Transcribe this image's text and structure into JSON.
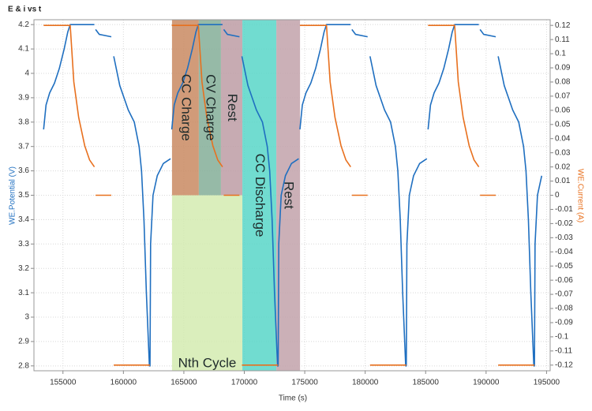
{
  "chart_data": {
    "type": "line",
    "title": "E & i vs t",
    "x_label": "Time (s)",
    "y_label": "WE.Potential (V)",
    "y2_label": "WE.Current (A)",
    "grid": true,
    "xlim": [
      152600,
      195300
    ],
    "xticks": [
      155000,
      160000,
      165000,
      170000,
      175000,
      180000,
      185000,
      190000,
      195000
    ],
    "ylim": [
      2.78,
      4.22
    ],
    "yticks": [
      2.8,
      2.9,
      3,
      3.1,
      3.2,
      3.3,
      3.4,
      3.5,
      3.6,
      3.7,
      3.8,
      3.9,
      4,
      4.1,
      4.2
    ],
    "y2lim": [
      -0.124,
      0.124
    ],
    "y2ticks": [
      -0.12,
      -0.11,
      -0.1,
      -0.09,
      -0.08,
      -0.07,
      -0.06,
      -0.05,
      -0.04,
      -0.03,
      -0.02,
      -0.01,
      0,
      0.01,
      0.02,
      0.03,
      0.04,
      0.05,
      0.06,
      0.07,
      0.08,
      0.09,
      0.1,
      0.11,
      0.12
    ],
    "x": [
      153400,
      153600,
      153900,
      154300,
      154700,
      155100,
      155400,
      155600,
      155900,
      156300,
      156800,
      157200,
      157600,
      157650,
      157700,
      158000,
      159000,
      159100,
      159200,
      159700,
      160400,
      160900,
      161300,
      161500,
      161700,
      161900,
      162150,
      162200,
      162250,
      162450,
      162800,
      163300,
      163900,
      163950,
      164000,
      164200,
      164500,
      164900,
      165300,
      165700,
      166000,
      166200,
      166500,
      166900,
      167400,
      167800,
      168200,
      168250,
      168300,
      168600,
      169600,
      169700,
      169800,
      170300,
      171000,
      171500,
      171900,
      172100,
      172300,
      172500,
      172750,
      172800,
      172850,
      173050,
      173400,
      173900,
      174500,
      174550,
      174600,
      174800,
      175100,
      175500,
      175900,
      176300,
      176600,
      176800,
      177100,
      177500,
      178000,
      178400,
      178800,
      178850,
      178900,
      179200,
      180200,
      180300,
      180400,
      180900,
      181600,
      182100,
      182500,
      182700,
      182900,
      183100,
      183350,
      183400,
      183450,
      183650,
      184000,
      184500,
      185100,
      185150,
      185200,
      185400,
      185700,
      186100,
      186500,
      186900,
      187200,
      187400,
      187700,
      188100,
      188600,
      189000,
      189400,
      189450,
      189500,
      189800,
      190800,
      190900,
      191000,
      191500,
      192200,
      192700,
      193100,
      193300,
      193500,
      193700,
      193950,
      194000,
      194050,
      194250,
      194600
    ],
    "series": [
      {
        "name": "WE.Potential (V)",
        "color": "#1f6fc0",
        "axis": "y",
        "values": [
          3.77,
          3.87,
          3.92,
          3.96,
          4.02,
          4.1,
          4.17,
          4.2,
          4.2,
          4.2,
          4.2,
          4.2,
          4.2,
          null,
          4.18,
          4.16,
          4.15,
          null,
          4.07,
          3.95,
          3.85,
          3.8,
          3.7,
          3.6,
          3.4,
          3.1,
          2.8,
          2.8,
          3.3,
          3.5,
          3.58,
          3.63,
          3.65,
          null,
          3.77,
          3.87,
          3.92,
          3.96,
          4.02,
          4.1,
          4.17,
          4.2,
          4.2,
          4.2,
          4.2,
          4.2,
          4.2,
          null,
          4.18,
          4.16,
          4.15,
          null,
          4.07,
          3.95,
          3.85,
          3.8,
          3.7,
          3.6,
          3.4,
          3.1,
          2.8,
          2.8,
          3.3,
          3.5,
          3.58,
          3.63,
          3.65,
          null,
          3.77,
          3.87,
          3.92,
          3.96,
          4.02,
          4.1,
          4.17,
          4.2,
          4.2,
          4.2,
          4.2,
          4.2,
          4.2,
          null,
          4.18,
          4.16,
          4.15,
          null,
          4.07,
          3.95,
          3.85,
          3.8,
          3.7,
          3.6,
          3.4,
          3.1,
          2.8,
          2.8,
          3.3,
          3.5,
          3.58,
          3.63,
          3.65,
          null,
          3.77,
          3.87,
          3.92,
          3.96,
          4.02,
          4.1,
          4.17,
          4.2,
          4.2,
          4.2,
          4.2,
          4.2,
          4.2,
          null,
          4.18,
          4.16,
          4.15,
          null,
          4.07,
          3.95,
          3.85,
          3.8,
          3.7,
          3.6,
          3.4,
          3.1,
          2.8,
          2.8,
          3.3,
          3.5,
          3.58
        ]
      },
      {
        "name": "WE.Current (A)",
        "color": "#e8701e",
        "axis": "y2",
        "values": [
          0.12,
          0.12,
          0.12,
          0.12,
          0.12,
          0.12,
          0.12,
          0.12,
          0.08,
          0.055,
          0.035,
          0.025,
          0.02,
          null,
          0,
          0,
          0,
          null,
          -0.12,
          -0.12,
          -0.12,
          -0.12,
          -0.12,
          -0.12,
          -0.12,
          -0.12,
          -0.12,
          -0.12,
          null,
          null,
          null,
          null,
          null,
          null,
          0.12,
          0.12,
          0.12,
          0.12,
          0.12,
          0.12,
          0.12,
          0.12,
          0.08,
          0.055,
          0.035,
          0.025,
          0.02,
          null,
          0,
          0,
          0,
          null,
          -0.12,
          -0.12,
          -0.12,
          -0.12,
          -0.12,
          -0.12,
          -0.12,
          -0.12,
          -0.12,
          -0.12,
          null,
          null,
          null,
          null,
          null,
          null,
          0.12,
          0.12,
          0.12,
          0.12,
          0.12,
          0.12,
          0.12,
          0.12,
          0.08,
          0.055,
          0.035,
          0.025,
          0.02,
          null,
          0,
          0,
          0,
          null,
          -0.12,
          -0.12,
          -0.12,
          -0.12,
          -0.12,
          -0.12,
          -0.12,
          -0.12,
          -0.12,
          -0.12,
          null,
          null,
          null,
          null,
          null,
          null,
          0.12,
          0.12,
          0.12,
          0.12,
          0.12,
          0.12,
          0.12,
          0.12,
          0.08,
          0.055,
          0.035,
          0.025,
          0.02,
          null,
          0,
          0,
          0,
          null,
          -0.12,
          -0.12,
          -0.12,
          -0.12,
          -0.12,
          -0.12,
          -0.12,
          -0.12,
          -0.12,
          -0.12,
          null,
          null,
          null
        ]
      }
    ],
    "regions": [
      {
        "label": "Nth Cycle",
        "x": [
          164020,
          169840
        ],
        "y": [
          2.78,
          3.5
        ],
        "color": "#d4ebb0",
        "orientation": "horizontal"
      },
      {
        "label": "CC Charge",
        "x": [
          164020,
          166240
        ],
        "y": [
          3.5,
          4.22
        ],
        "color": "#c98a62",
        "orientation": "vertical"
      },
      {
        "label": "CV Charge",
        "x": [
          166240,
          168070
        ],
        "y": [
          3.5,
          4.22
        ],
        "color": "#84ae98",
        "orientation": "vertical"
      },
      {
        "label": "Rest",
        "x": [
          168070,
          169840
        ],
        "y": [
          3.5,
          4.22
        ],
        "color": "#bd9ca4",
        "orientation": "vertical"
      },
      {
        "label": "CC Discharge",
        "x": [
          169840,
          172650
        ],
        "y": [
          2.78,
          4.22
        ],
        "color": "#58d6c8",
        "orientation": "vertical"
      },
      {
        "label": "Rest",
        "x": [
          172650,
          174610
        ],
        "y": [
          2.78,
          4.22
        ],
        "color": "#c2a2aa",
        "orientation": "vertical"
      }
    ]
  }
}
